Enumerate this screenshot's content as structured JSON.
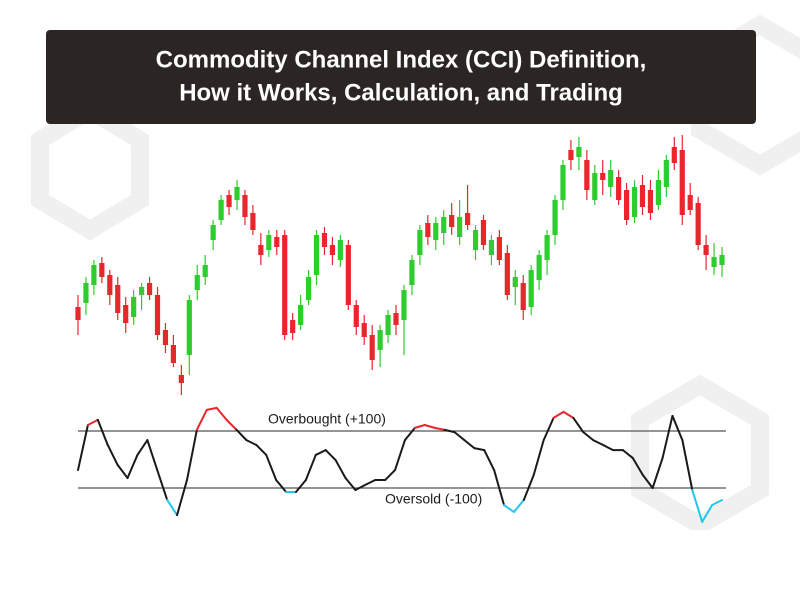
{
  "header": {
    "title_lines": [
      "Commodity Channel Index (CCI) Definition,",
      "How it Works, Calculation, and Trading"
    ]
  },
  "chart_data": [
    {
      "type": "candlestick",
      "up_color": "#2fcc2f",
      "down_color": "#e8262b",
      "ylim": [
        0,
        260
      ],
      "open": [
        88,
        92,
        110,
        132,
        120,
        110,
        90,
        78,
        100,
        112,
        100,
        65,
        50,
        20,
        40,
        105,
        118,
        155,
        175,
        200,
        195,
        200,
        182,
        150,
        145,
        158,
        160,
        75,
        70,
        95,
        120,
        162,
        150,
        135,
        150,
        90,
        72,
        60,
        45,
        60,
        82,
        75,
        110,
        140,
        172,
        155,
        162,
        180,
        158,
        182,
        145,
        175,
        140,
        158,
        142,
        108,
        112,
        88,
        115,
        135,
        160,
        195,
        245,
        238,
        235,
        195,
        222,
        208,
        218,
        205,
        178,
        210,
        205,
        190,
        208,
        248,
        245,
        200,
        192,
        150,
        128,
        130
      ],
      "high": [
        100,
        118,
        135,
        138,
        125,
        118,
        98,
        105,
        112,
        118,
        108,
        72,
        60,
        30,
        100,
        130,
        140,
        175,
        200,
        205,
        215,
        205,
        190,
        162,
        165,
        165,
        165,
        82,
        100,
        125,
        165,
        168,
        158,
        160,
        155,
        95,
        80,
        70,
        70,
        85,
        90,
        110,
        140,
        170,
        180,
        178,
        185,
        192,
        195,
        210,
        170,
        180,
        160,
        165,
        150,
        125,
        120,
        130,
        145,
        165,
        200,
        235,
        255,
        258,
        245,
        230,
        235,
        235,
        225,
        212,
        215,
        220,
        215,
        225,
        240,
        258,
        260,
        212,
        198,
        160,
        152,
        148
      ],
      "low": [
        60,
        80,
        100,
        112,
        90,
        75,
        62,
        70,
        85,
        95,
        55,
        42,
        28,
        0,
        20,
        95,
        110,
        145,
        170,
        180,
        185,
        170,
        160,
        130,
        138,
        140,
        55,
        55,
        65,
        90,
        110,
        140,
        130,
        128,
        85,
        60,
        50,
        25,
        28,
        52,
        60,
        40,
        100,
        130,
        150,
        145,
        150,
        160,
        150,
        165,
        135,
        145,
        130,
        130,
        95,
        90,
        75,
        80,
        105,
        120,
        150,
        185,
        225,
        225,
        195,
        190,
        200,
        198,
        190,
        170,
        172,
        180,
        175,
        185,
        198,
        225,
        170,
        180,
        145,
        125,
        120,
        118
      ],
      "close": [
        75,
        112,
        130,
        118,
        100,
        82,
        72,
        98,
        108,
        100,
        60,
        50,
        32,
        12,
        95,
        120,
        130,
        170,
        195,
        188,
        208,
        178,
        165,
        140,
        160,
        148,
        60,
        62,
        90,
        118,
        160,
        148,
        140,
        155,
        90,
        68,
        58,
        35,
        65,
        80,
        70,
        105,
        135,
        165,
        158,
        172,
        178,
        168,
        178,
        170,
        165,
        150,
        155,
        135,
        100,
        118,
        85,
        125,
        140,
        160,
        195,
        230,
        235,
        248,
        205,
        222,
        215,
        225,
        195,
        175,
        208,
        188,
        182,
        215,
        235,
        232,
        180,
        185,
        150,
        140,
        138,
        140
      ]
    },
    {
      "type": "line",
      "color": "#1a1a1a",
      "overbought_color": "#e8262b",
      "oversold_color": "#22c8e8",
      "level_color": "#555555",
      "ylim": [
        -300,
        300
      ],
      "levels": [
        {
          "value": 100,
          "label": "Overbought (+100)"
        },
        {
          "value": -100,
          "label": "Oversold (-100)"
        }
      ],
      "values": [
        -37,
        121,
        139,
        51,
        -19,
        -65,
        16,
        68,
        -37,
        -142,
        -195,
        -72,
        104,
        174,
        181,
        139,
        104,
        68,
        51,
        16,
        -72,
        -114,
        -114,
        -72,
        16,
        33,
        -2,
        -65,
        -107,
        -89,
        -72,
        -72,
        -37,
        68,
        111,
        121,
        111,
        104,
        96,
        68,
        40,
        33,
        -37,
        -160,
        -184,
        -142,
        -54,
        68,
        146,
        167,
        146,
        96,
        68,
        51,
        33,
        33,
        5,
        -54,
        -100,
        5,
        153,
        68,
        -107,
        -219,
        -160,
        -142
      ]
    }
  ]
}
